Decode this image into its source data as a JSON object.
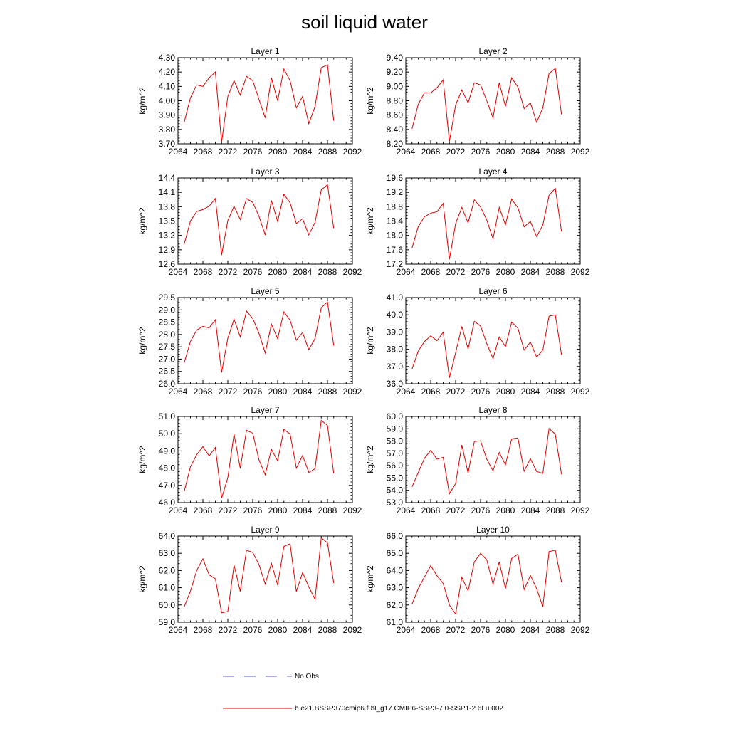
{
  "title": "soil liquid water",
  "legend": {
    "obs_label": "No Obs",
    "obs_color": "#5b5bd6",
    "model_label": "b.e21.BSSP370cmip6.f09_g17.CMIP6-SSP3-7.0-SSP1-2.6Lu.002",
    "model_color": "#e00000"
  },
  "chart_data": [
    {
      "type": "line",
      "title": "Layer 1",
      "ylabel": "kg/m^2",
      "xlim": [
        2064,
        2092
      ],
      "ylim": [
        3.7,
        4.3
      ],
      "x_ticks": [
        "2064",
        "2068",
        "2072",
        "2076",
        "2080",
        "2084",
        "2088",
        "2092"
      ],
      "y_ticks": [
        "3.70",
        "3.80",
        "3.90",
        "4.00",
        "4.10",
        "4.20",
        "4.30"
      ],
      "x": [
        2065,
        2066,
        2067,
        2068,
        2069,
        2070,
        2071,
        2072,
        2073,
        2074,
        2075,
        2076,
        2077,
        2078,
        2079,
        2080,
        2081,
        2082,
        2083,
        2084,
        2085,
        2086,
        2087,
        2088,
        2089
      ],
      "values": [
        3.85,
        4.02,
        4.11,
        4.1,
        4.16,
        4.2,
        3.71,
        4.03,
        4.14,
        4.04,
        4.17,
        4.14,
        4.01,
        3.88,
        4.16,
        4.0,
        4.22,
        4.14,
        3.95,
        4.03,
        3.84,
        3.96,
        4.23,
        4.25,
        3.86
      ]
    },
    {
      "type": "line",
      "title": "Layer 2",
      "ylabel": "kg/m^2",
      "xlim": [
        2064,
        2092
      ],
      "ylim": [
        8.2,
        9.4
      ],
      "x_ticks": [
        "2064",
        "2068",
        "2072",
        "2076",
        "2080",
        "2084",
        "2088",
        "2092"
      ],
      "y_ticks": [
        "8.20",
        "8.40",
        "8.60",
        "8.80",
        "9.00",
        "9.20",
        "9.40"
      ],
      "x": [
        2065,
        2066,
        2067,
        2068,
        2069,
        2070,
        2071,
        2072,
        2073,
        2074,
        2075,
        2076,
        2077,
        2078,
        2079,
        2080,
        2081,
        2082,
        2083,
        2084,
        2085,
        2086,
        2087,
        2088,
        2089
      ],
      "values": [
        8.41,
        8.75,
        8.91,
        8.91,
        8.98,
        9.09,
        8.23,
        8.74,
        8.95,
        8.77,
        9.05,
        9.02,
        8.8,
        8.56,
        9.05,
        8.72,
        9.12,
        8.99,
        8.69,
        8.77,
        8.5,
        8.7,
        9.18,
        9.25,
        8.61
      ]
    },
    {
      "type": "line",
      "title": "Layer 3",
      "ylabel": "kg/m^2",
      "xlim": [
        2064,
        2092
      ],
      "ylim": [
        12.6,
        14.4
      ],
      "x_ticks": [
        "2064",
        "2068",
        "2072",
        "2076",
        "2080",
        "2084",
        "2088",
        "2092"
      ],
      "y_ticks": [
        "12.6",
        "12.9",
        "13.2",
        "13.5",
        "13.8",
        "14.1",
        "14.4"
      ],
      "x": [
        2065,
        2066,
        2067,
        2068,
        2069,
        2070,
        2071,
        2072,
        2073,
        2074,
        2075,
        2076,
        2077,
        2078,
        2079,
        2080,
        2081,
        2082,
        2083,
        2084,
        2085,
        2086,
        2087,
        2088,
        2089
      ],
      "values": [
        13.02,
        13.5,
        13.7,
        13.74,
        13.81,
        13.97,
        12.79,
        13.51,
        13.81,
        13.53,
        13.97,
        13.89,
        13.6,
        13.21,
        13.93,
        13.49,
        14.06,
        13.88,
        13.45,
        13.55,
        13.21,
        13.47,
        14.15,
        14.26,
        13.35
      ]
    },
    {
      "type": "line",
      "title": "Layer 4",
      "ylabel": "kg/m^2",
      "xlim": [
        2064,
        2092
      ],
      "ylim": [
        17.2,
        19.6
      ],
      "x_ticks": [
        "2064",
        "2068",
        "2072",
        "2076",
        "2080",
        "2084",
        "2088",
        "2092"
      ],
      "y_ticks": [
        "17.2",
        "17.6",
        "18.0",
        "18.4",
        "18.8",
        "19.2",
        "19.6"
      ],
      "x": [
        2065,
        2066,
        2067,
        2068,
        2069,
        2070,
        2071,
        2072,
        2073,
        2074,
        2075,
        2076,
        2077,
        2078,
        2079,
        2080,
        2081,
        2082,
        2083,
        2084,
        2085,
        2086,
        2087,
        2088,
        2089
      ],
      "values": [
        17.65,
        18.25,
        18.52,
        18.62,
        18.66,
        18.89,
        17.33,
        18.33,
        18.78,
        18.35,
        18.99,
        18.79,
        18.43,
        17.9,
        18.78,
        18.3,
        19.01,
        18.77,
        18.24,
        18.39,
        17.97,
        18.29,
        19.12,
        19.31,
        18.11
      ]
    },
    {
      "type": "line",
      "title": "Layer 5",
      "ylabel": "kg/m^2",
      "xlim": [
        2064,
        2092
      ],
      "ylim": [
        26.0,
        29.5
      ],
      "x_ticks": [
        "2064",
        "2068",
        "2072",
        "2076",
        "2080",
        "2084",
        "2088",
        "2092"
      ],
      "y_ticks": [
        "26.0",
        "26.5",
        "27.0",
        "27.5",
        "28.0",
        "28.5",
        "29.0",
        "29.5"
      ],
      "x": [
        2065,
        2066,
        2067,
        2068,
        2069,
        2070,
        2071,
        2072,
        2073,
        2074,
        2075,
        2076,
        2077,
        2078,
        2079,
        2080,
        2081,
        2082,
        2083,
        2084,
        2085,
        2086,
        2087,
        2088,
        2089
      ],
      "values": [
        26.85,
        27.72,
        28.18,
        28.33,
        28.27,
        28.6,
        26.45,
        27.85,
        28.62,
        27.9,
        28.95,
        28.65,
        28.05,
        27.25,
        28.42,
        27.83,
        28.92,
        28.58,
        27.77,
        28.08,
        27.38,
        27.84,
        29.09,
        29.32,
        27.55
      ]
    },
    {
      "type": "line",
      "title": "Layer 6",
      "ylabel": "kg/m^2",
      "xlim": [
        2064,
        2092
      ],
      "ylim": [
        36.0,
        41.0
      ],
      "x_ticks": [
        "2064",
        "2068",
        "2072",
        "2076",
        "2080",
        "2084",
        "2088",
        "2092"
      ],
      "y_ticks": [
        "36.0",
        "37.0",
        "38.0",
        "39.0",
        "40.0",
        "41.0"
      ],
      "x": [
        2065,
        2066,
        2067,
        2068,
        2069,
        2070,
        2071,
        2072,
        2073,
        2074,
        2075,
        2076,
        2077,
        2078,
        2079,
        2080,
        2081,
        2082,
        2083,
        2084,
        2085,
        2086,
        2087,
        2088,
        2089
      ],
      "values": [
        36.85,
        37.9,
        38.45,
        38.78,
        38.5,
        38.99,
        36.34,
        37.8,
        39.32,
        38.02,
        39.62,
        39.35,
        38.33,
        37.45,
        38.72,
        38.15,
        39.58,
        39.22,
        37.95,
        38.42,
        37.55,
        37.95,
        39.92,
        40.0,
        37.68
      ]
    },
    {
      "type": "line",
      "title": "Layer 7",
      "ylabel": "kg/m^2",
      "xlim": [
        2064,
        2092
      ],
      "ylim": [
        46.0,
        51.0
      ],
      "x_ticks": [
        "2064",
        "2068",
        "2072",
        "2076",
        "2080",
        "2084",
        "2088",
        "2092"
      ],
      "y_ticks": [
        "46.0",
        "47.0",
        "48.0",
        "49.0",
        "50.0",
        "51.0"
      ],
      "x": [
        2065,
        2066,
        2067,
        2068,
        2069,
        2070,
        2071,
        2072,
        2073,
        2074,
        2075,
        2076,
        2077,
        2078,
        2079,
        2080,
        2081,
        2082,
        2083,
        2084,
        2085,
        2086,
        2087,
        2088,
        2089
      ],
      "values": [
        46.65,
        48.08,
        48.78,
        49.25,
        48.71,
        49.2,
        46.25,
        47.45,
        49.98,
        47.98,
        50.2,
        50.03,
        48.48,
        47.62,
        49.1,
        48.42,
        50.25,
        49.98,
        48.0,
        48.73,
        47.75,
        47.97,
        50.77,
        50.48,
        47.7
      ]
    },
    {
      "type": "line",
      "title": "Layer 8",
      "ylabel": "kg/m^2",
      "xlim": [
        2064,
        2092
      ],
      "ylim": [
        53.0,
        60.0
      ],
      "x_ticks": [
        "2064",
        "2068",
        "2072",
        "2076",
        "2080",
        "2084",
        "2088",
        "2092"
      ],
      "y_ticks": [
        "53.0",
        "54.0",
        "55.0",
        "56.0",
        "57.0",
        "58.0",
        "59.0",
        "60.0"
      ],
      "x": [
        2065,
        2066,
        2067,
        2068,
        2069,
        2070,
        2071,
        2072,
        2073,
        2074,
        2075,
        2076,
        2077,
        2078,
        2079,
        2080,
        2081,
        2082,
        2083,
        2084,
        2085,
        2086,
        2087,
        2088,
        2089
      ],
      "values": [
        54.28,
        55.45,
        56.6,
        57.25,
        56.53,
        56.68,
        53.72,
        54.55,
        57.68,
        55.4,
        57.97,
        58.02,
        56.53,
        55.58,
        57.08,
        56.07,
        58.18,
        58.25,
        55.55,
        56.57,
        55.53,
        55.38,
        59.02,
        58.55,
        55.3
      ]
    },
    {
      "type": "line",
      "title": "Layer 9",
      "ylabel": "kg/m^2",
      "xlim": [
        2064,
        2092
      ],
      "ylim": [
        59.0,
        64.0
      ],
      "x_ticks": [
        "2064",
        "2068",
        "2072",
        "2076",
        "2080",
        "2084",
        "2088",
        "2092"
      ],
      "y_ticks": [
        "59.0",
        "60.0",
        "61.0",
        "62.0",
        "63.0",
        "64.0"
      ],
      "x": [
        2065,
        2066,
        2067,
        2068,
        2069,
        2070,
        2071,
        2072,
        2073,
        2074,
        2075,
        2076,
        2077,
        2078,
        2079,
        2080,
        2081,
        2082,
        2083,
        2084,
        2085,
        2086,
        2087,
        2088,
        2089
      ],
      "values": [
        59.9,
        60.8,
        62.0,
        62.68,
        61.75,
        61.52,
        59.55,
        59.62,
        62.32,
        60.78,
        63.18,
        63.05,
        62.35,
        61.22,
        62.42,
        61.15,
        63.4,
        63.55,
        60.78,
        61.88,
        61.05,
        60.33,
        63.9,
        63.6,
        61.27
      ]
    },
    {
      "type": "line",
      "title": "Layer 10",
      "ylabel": "kg/m^2",
      "xlim": [
        2064,
        2092
      ],
      "ylim": [
        61.0,
        66.0
      ],
      "x_ticks": [
        "2064",
        "2068",
        "2072",
        "2076",
        "2080",
        "2084",
        "2088",
        "2092"
      ],
      "y_ticks": [
        "61.0",
        "62.0",
        "63.0",
        "64.0",
        "65.0",
        "66.0"
      ],
      "x": [
        2065,
        2066,
        2067,
        2068,
        2069,
        2070,
        2071,
        2072,
        2073,
        2074,
        2075,
        2076,
        2077,
        2078,
        2079,
        2080,
        2081,
        2082,
        2083,
        2084,
        2085,
        2086,
        2087,
        2088,
        2089
      ],
      "values": [
        62.05,
        62.95,
        63.63,
        64.28,
        63.7,
        63.25,
        62.0,
        61.47,
        63.6,
        62.82,
        64.5,
        65.0,
        64.62,
        63.2,
        64.5,
        62.95,
        64.7,
        64.95,
        62.9,
        63.72,
        62.95,
        61.9,
        65.1,
        65.18,
        63.32
      ]
    }
  ]
}
